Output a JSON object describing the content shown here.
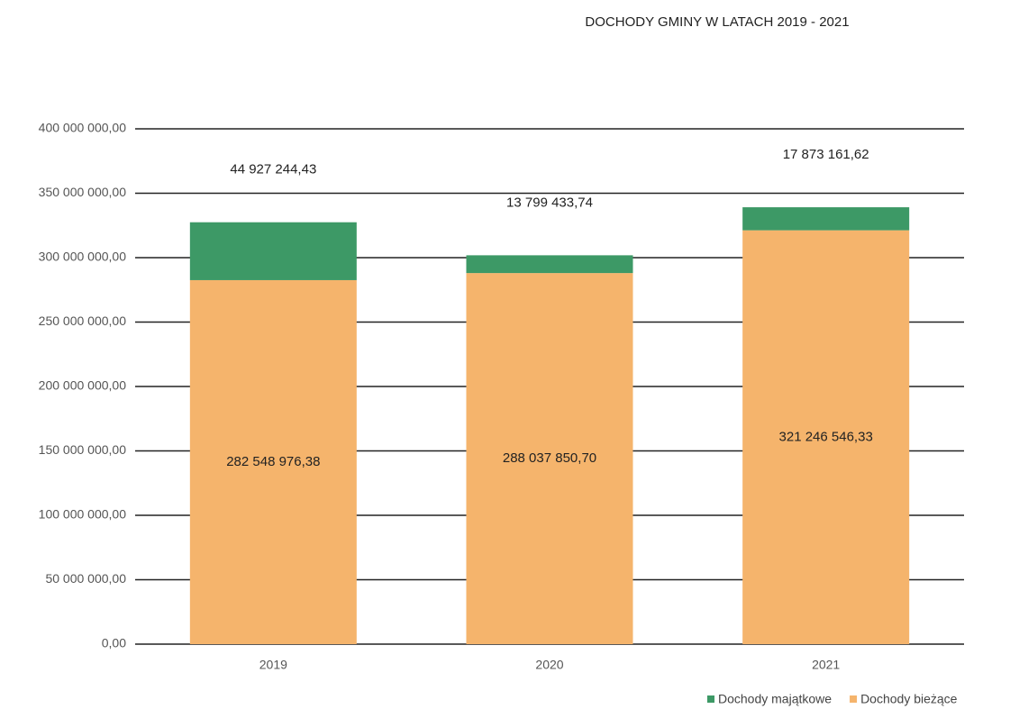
{
  "chart_data": {
    "type": "stacked_bar",
    "title": "DOCHODY GMINY W LATACH  2019 - 2021",
    "categories": [
      "2019",
      "2020",
      "2021"
    ],
    "series": [
      {
        "name": "Dochody bieżące",
        "color": "#f5b46c",
        "values": [
          282548976.38,
          288037850.7,
          321246546.33
        ],
        "value_labels": [
          "282 548 976,38",
          "288 037 850,70",
          "321 246 546,33"
        ]
      },
      {
        "name": "Dochody majątkowe",
        "color": "#3d9966",
        "values": [
          44927244.43,
          13799433.74,
          17873161.62
        ],
        "value_labels": [
          "44 927 244,43",
          "13 799 433,74",
          "17 873 161,62"
        ]
      }
    ],
    "ylim": [
      0,
      400000000
    ],
    "yticks": [
      {
        "value": 0,
        "label": "0,00"
      },
      {
        "value": 50000000,
        "label": "50 000 000,00"
      },
      {
        "value": 100000000,
        "label": "100 000 000,00"
      },
      {
        "value": 150000000,
        "label": "150 000 000,00"
      },
      {
        "value": 200000000,
        "label": "200 000 000,00"
      },
      {
        "value": 250000000,
        "label": "250 000 000,00"
      },
      {
        "value": 300000000,
        "label": "300 000 000,00"
      },
      {
        "value": 350000000,
        "label": "350 000 000,00"
      },
      {
        "value": 400000000,
        "label": "400 000 000,00"
      }
    ],
    "grid": true,
    "legend": "bottom-right"
  }
}
